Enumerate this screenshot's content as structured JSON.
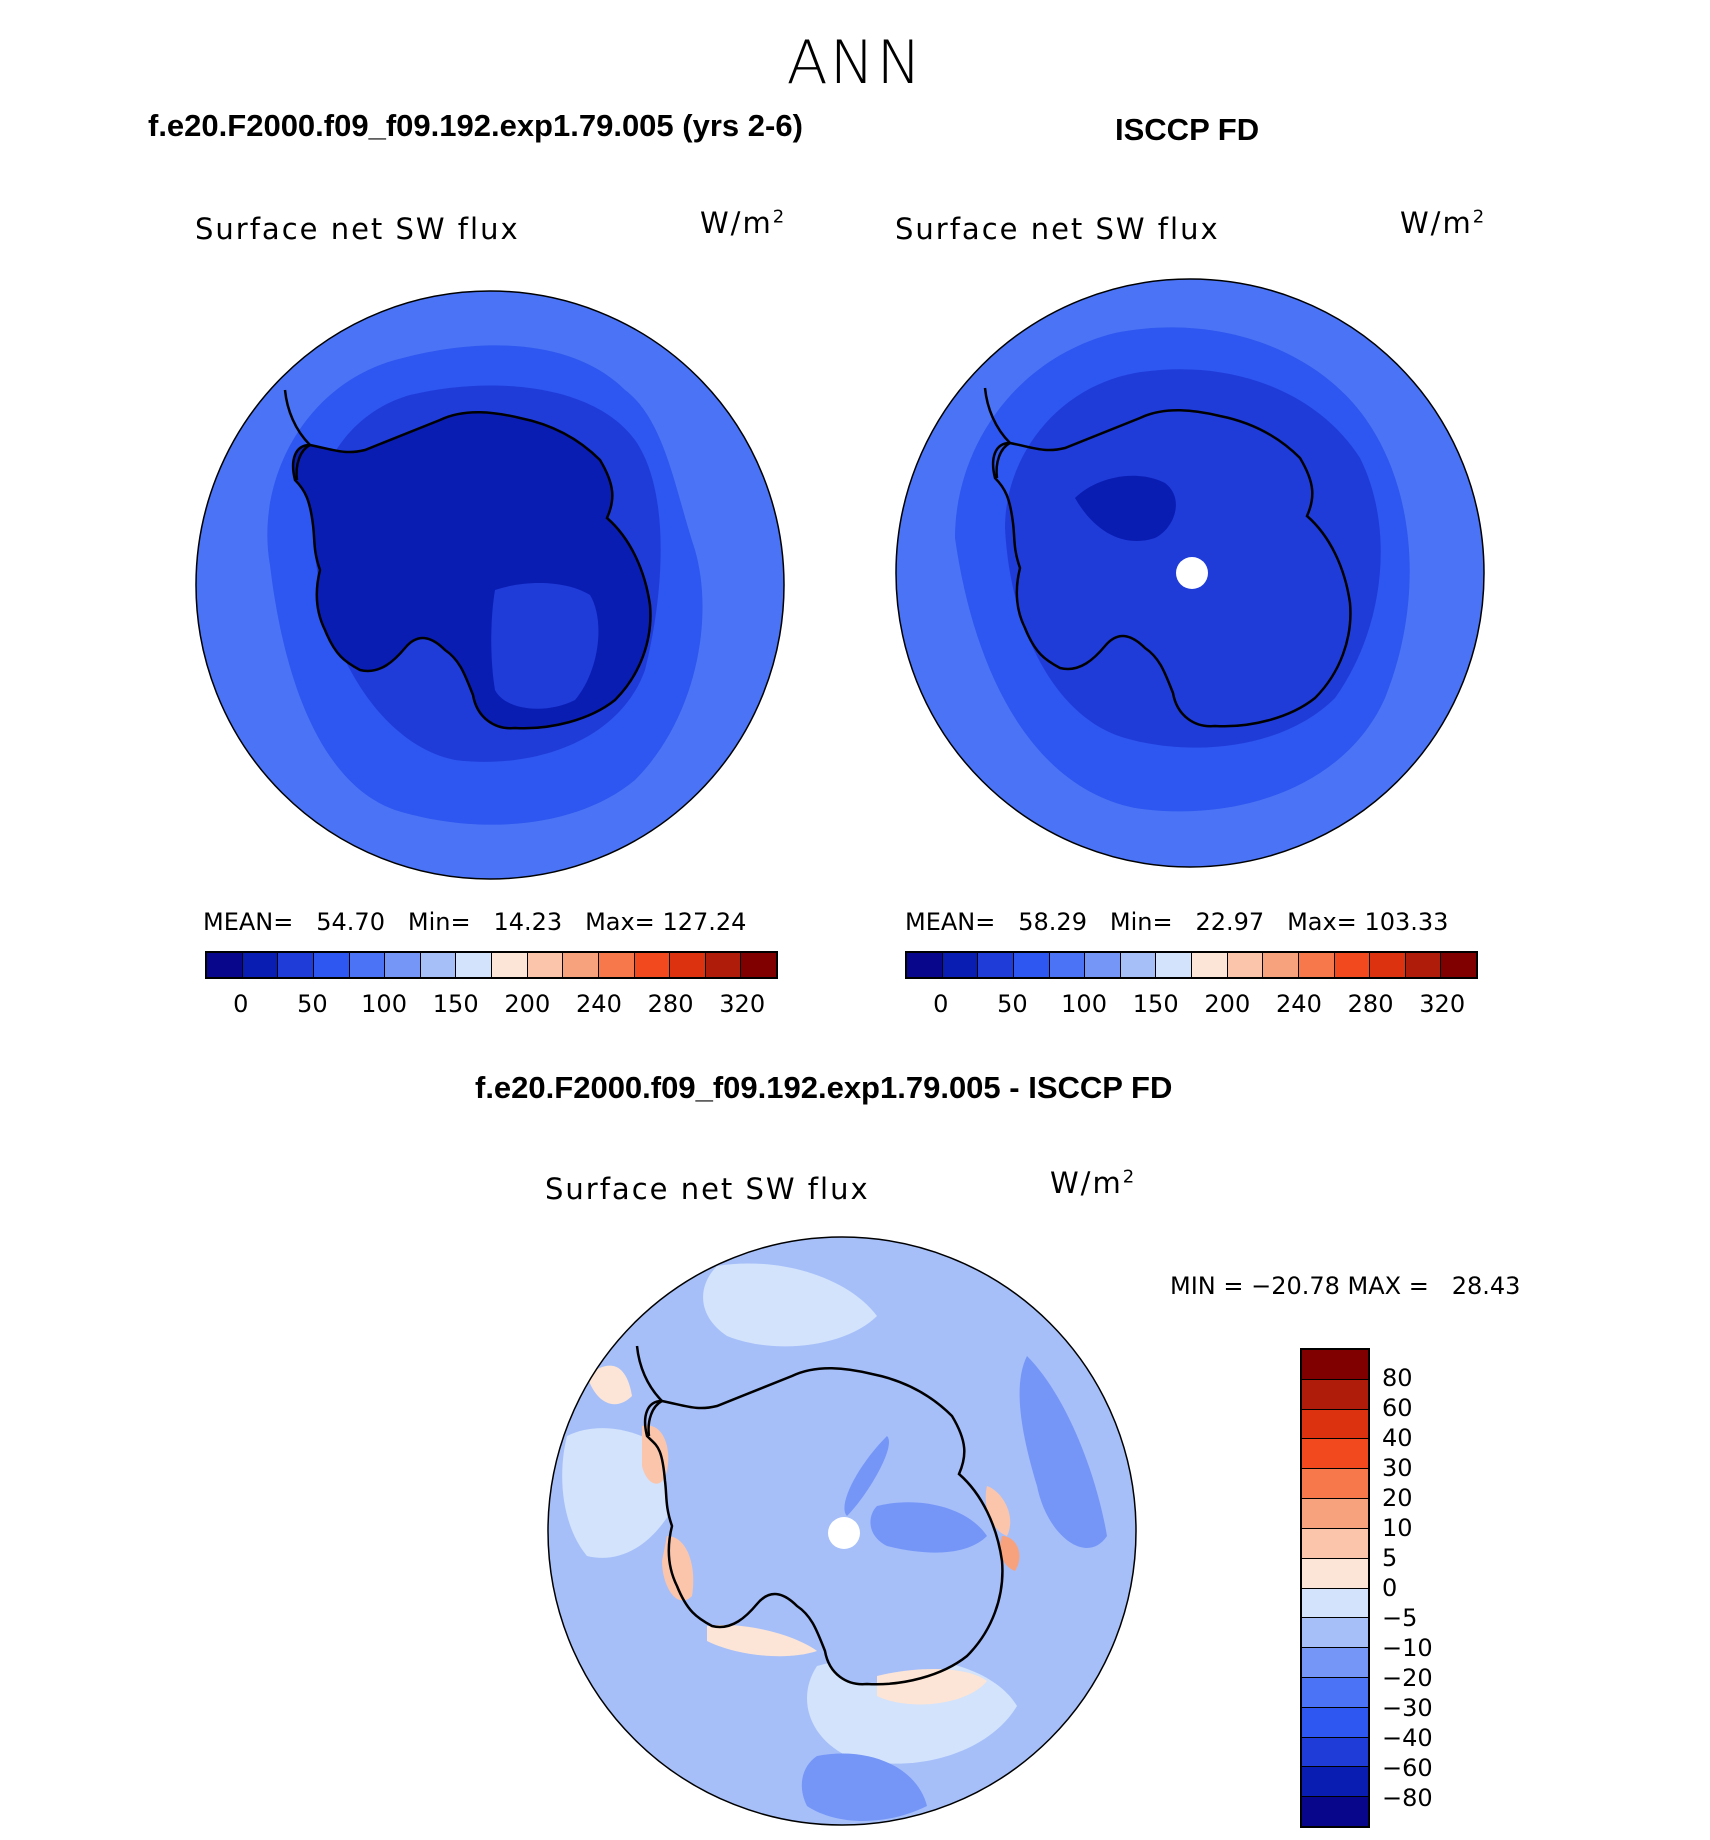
{
  "main_title": "ANN",
  "panels": {
    "model": {
      "title": "f.e20.F2000.f09_f09.192.exp1.79.005 (yrs 2-6)",
      "variable": "Surface net SW flux",
      "units_base": "W/m",
      "units_exp": "2",
      "mean_label": "MEAN=",
      "mean": "54.70",
      "min_label": "Min=",
      "min": "14.23",
      "max_label": "Max=",
      "max": "127.24"
    },
    "obs": {
      "title": "ISCCP FD",
      "variable": "Surface net SW flux",
      "units_base": "W/m",
      "units_exp": "2",
      "mean_label": "MEAN=",
      "mean": "58.29",
      "min_label": "Min=",
      "min": "22.97",
      "max_label": "Max=",
      "max": "103.33"
    },
    "diff": {
      "title": "f.e20.F2000.f09_f09.192.exp1.79.005 - ISCCP FD",
      "variable": "Surface net SW flux",
      "units_base": "W/m",
      "units_exp": "2",
      "minmax": "MIN = −20.78 MAX =   28.43"
    }
  },
  "chart_data": [
    {
      "type": "heatmap",
      "projection": "south-polar-stereographic",
      "title": "f.e20.F2000.f09_f09.192.exp1.79.005 (yrs 2-6)",
      "variable": "Surface net SW flux",
      "units": "W/m2",
      "mean": 54.7,
      "min": 14.23,
      "max": 127.24,
      "colorbar_levels": [
        0,
        25,
        50,
        75,
        100,
        125,
        150,
        175,
        200,
        220,
        240,
        260,
        280,
        300,
        320
      ],
      "colorbar_tick_labels": [
        "0",
        "50",
        "100",
        "150",
        "200",
        "240",
        "280",
        "320"
      ],
      "colorbar_colors": [
        "#08078c",
        "#0a1db3",
        "#1f3cd9",
        "#2e56f0",
        "#4a73f5",
        "#7596f7",
        "#a6bff9",
        "#d2e3fb",
        "#fce5d6",
        "#fbc5ac",
        "#f7a27d",
        "#f7794b",
        "#f24a1e",
        "#dc3210",
        "#b01c0a",
        "#800000"
      ]
    },
    {
      "type": "heatmap",
      "projection": "south-polar-stereographic",
      "title": "ISCCP FD",
      "variable": "Surface net SW flux",
      "units": "W/m2",
      "mean": 58.29,
      "min": 22.97,
      "max": 103.33,
      "colorbar_levels": [
        0,
        25,
        50,
        75,
        100,
        125,
        150,
        175,
        200,
        220,
        240,
        260,
        280,
        300,
        320
      ],
      "colorbar_tick_labels": [
        "0",
        "50",
        "100",
        "150",
        "200",
        "240",
        "280",
        "320"
      ],
      "colorbar_colors": [
        "#08078c",
        "#0a1db3",
        "#1f3cd9",
        "#2e56f0",
        "#4a73f5",
        "#7596f7",
        "#a6bff9",
        "#d2e3fb",
        "#fce5d6",
        "#fbc5ac",
        "#f7a27d",
        "#f7794b",
        "#f24a1e",
        "#dc3210",
        "#b01c0a",
        "#800000"
      ]
    },
    {
      "type": "heatmap",
      "projection": "south-polar-stereographic",
      "title": "f.e20.F2000.f09_f09.192.exp1.79.005 - ISCCP FD",
      "variable": "Surface net SW flux",
      "units": "W/m2",
      "min": -20.78,
      "max": 28.43,
      "colorbar_tick_labels": [
        "80",
        "60",
        "40",
        "30",
        "20",
        "10",
        "5",
        "0",
        "−5",
        "−10",
        "−20",
        "−30",
        "−40",
        "−60",
        "−80"
      ],
      "colorbar_colors": [
        "#800000",
        "#b01c0a",
        "#dc3210",
        "#f24a1e",
        "#f7794b",
        "#f7a27d",
        "#fbc5ac",
        "#fce5d6",
        "#d2e3fb",
        "#a6bff9",
        "#7596f7",
        "#4a73f5",
        "#2e56f0",
        "#1f3cd9",
        "#0a1db3",
        "#08078c"
      ]
    }
  ]
}
